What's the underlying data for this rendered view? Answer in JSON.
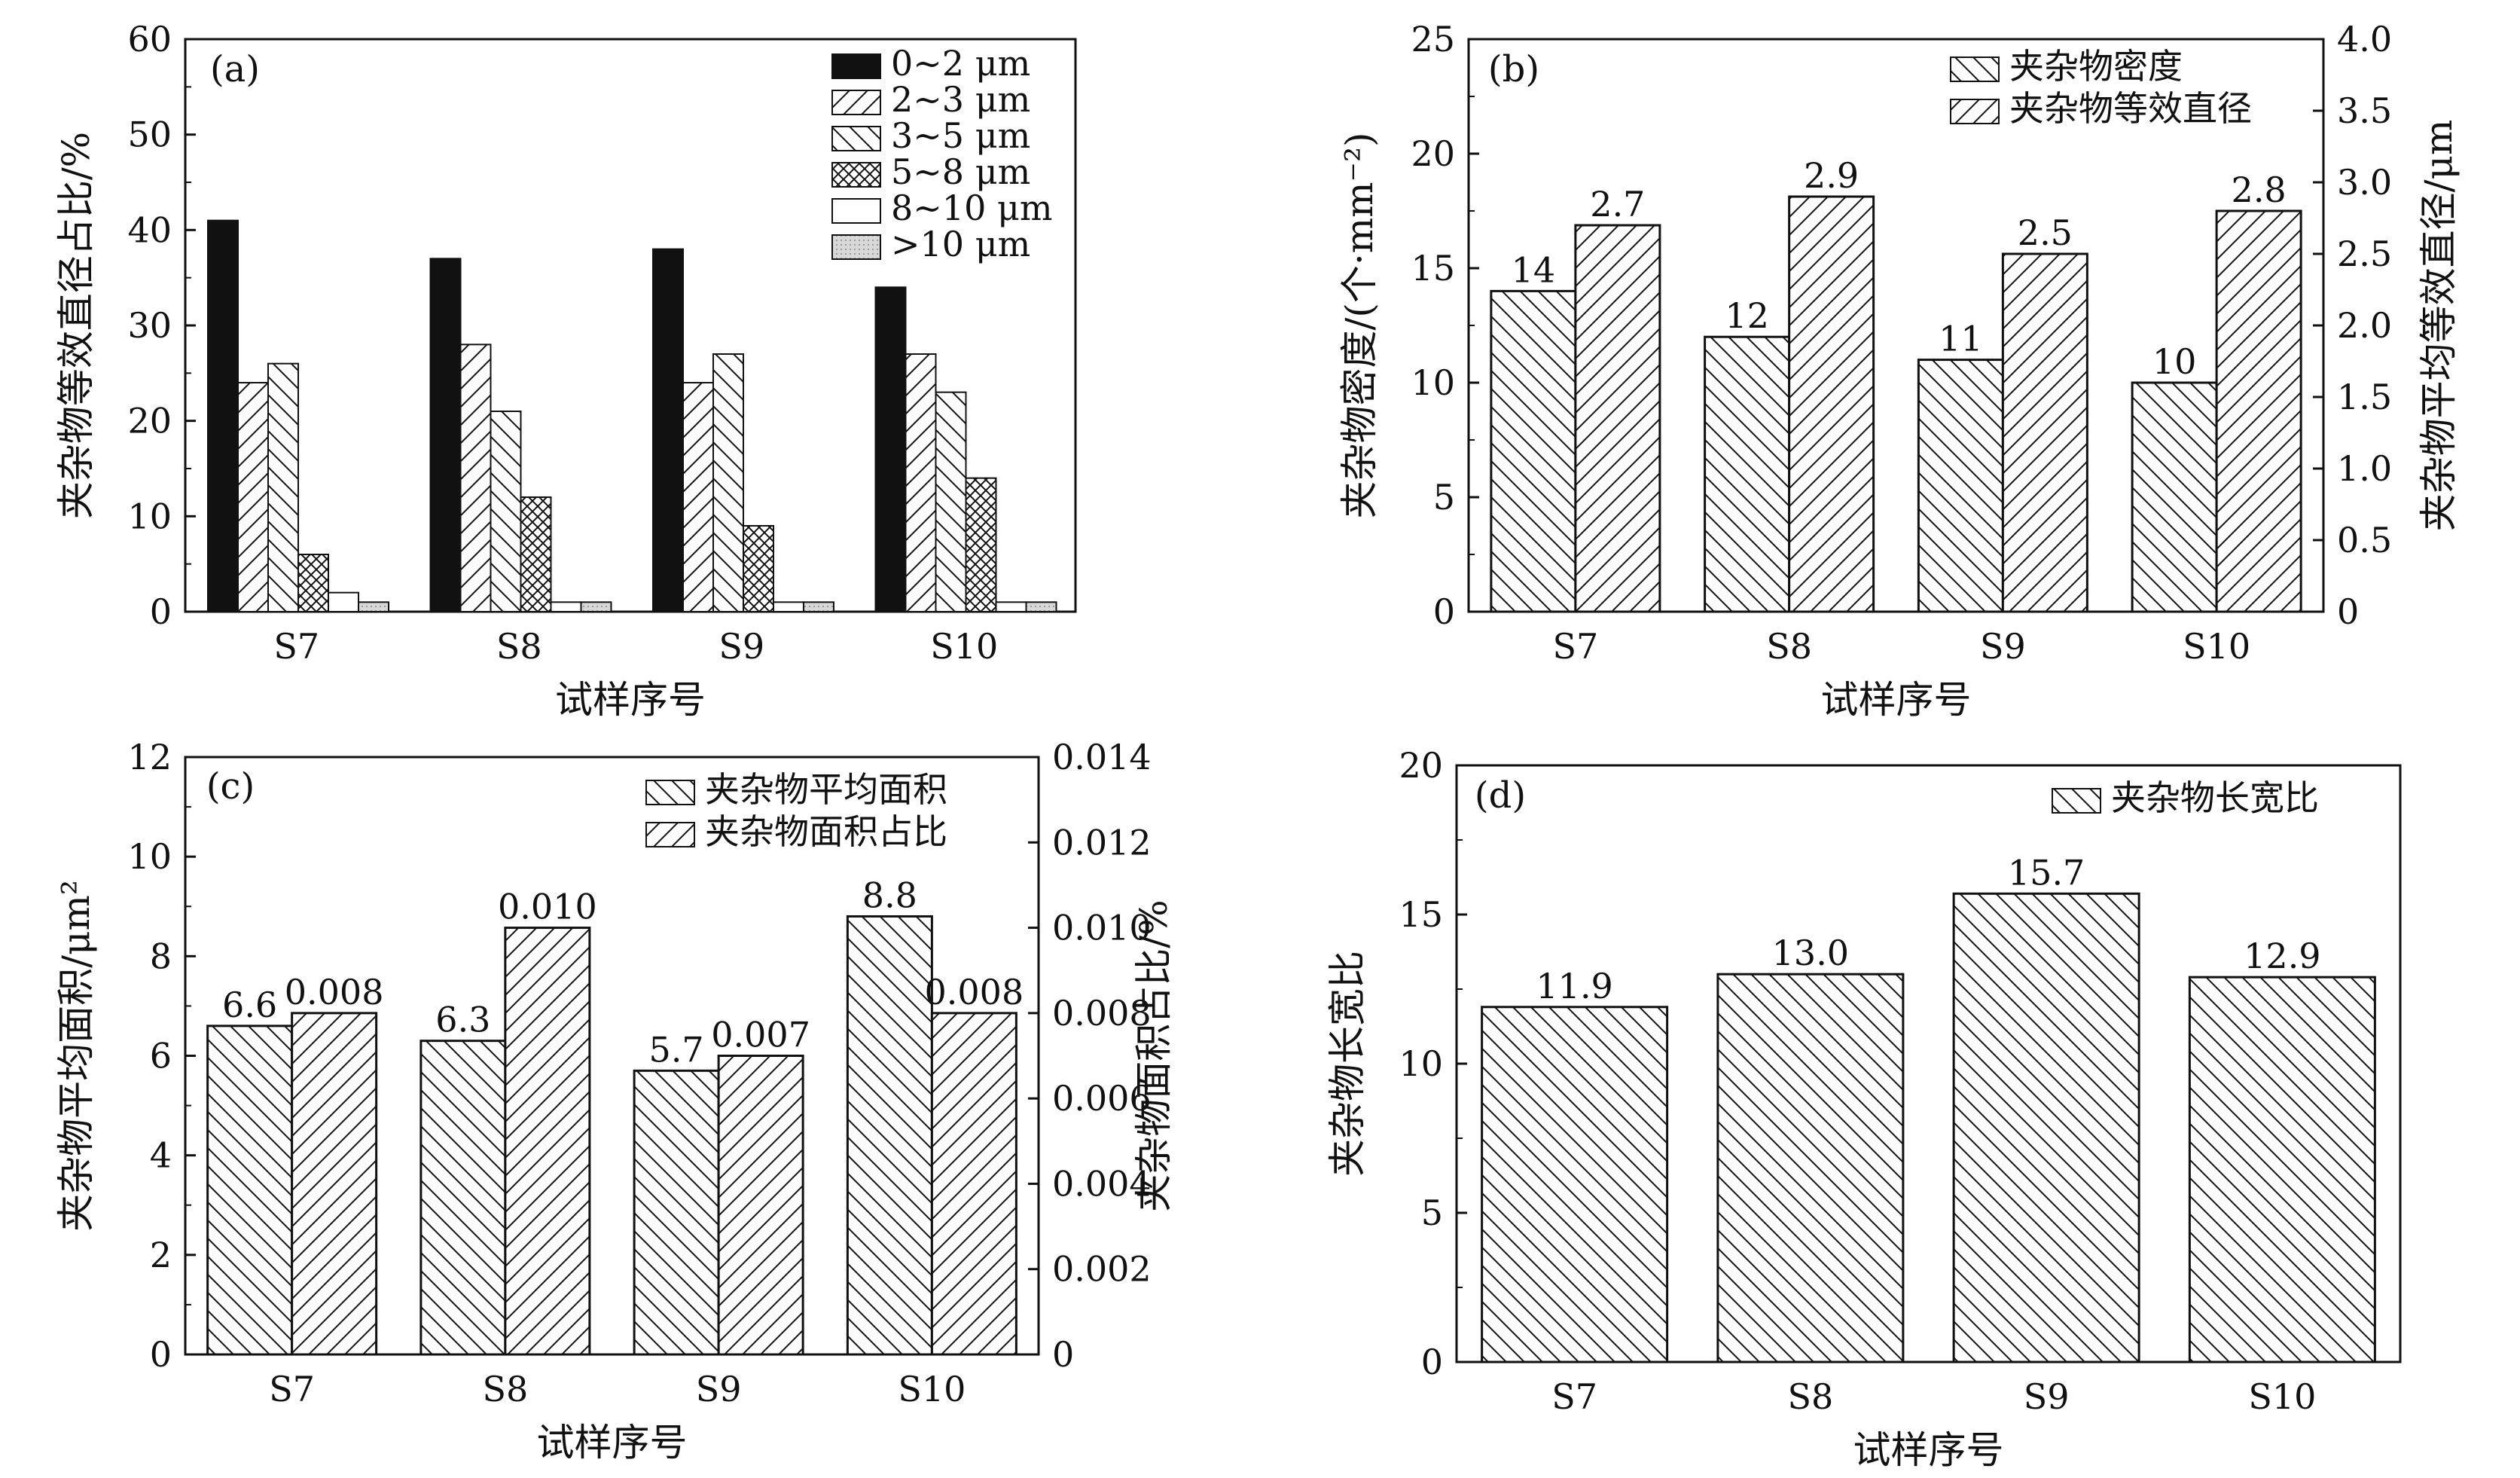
{
  "chart_data": [
    {
      "panel_label": "(a)",
      "type": "bar",
      "xlabel": "试样序号",
      "ylabel": "夹杂物等效直径占比/%",
      "categories": [
        "S7",
        "S8",
        "S9",
        "S10"
      ],
      "ylim": [
        0,
        60
      ],
      "yticks": [
        "0",
        "10",
        "20",
        "30",
        "40",
        "50",
        "60"
      ],
      "legend_position": "top-right",
      "series": [
        {
          "name": "0~2 μm",
          "values": [
            41,
            37,
            38,
            34
          ],
          "fill": "solid-black"
        },
        {
          "name": "2~3 μm",
          "values": [
            24,
            28,
            24,
            27
          ],
          "fill": "hatch-forward"
        },
        {
          "name": "3~5 μm",
          "values": [
            26,
            21,
            27,
            23
          ],
          "fill": "hatch-back"
        },
        {
          "name": "5~8 μm",
          "values": [
            6,
            12,
            9,
            14
          ],
          "fill": "crosshatch"
        },
        {
          "name": "8~10 μm",
          "values": [
            2,
            1,
            1,
            1
          ],
          "fill": "white"
        },
        {
          "name": ">10 μm",
          "values": [
            1,
            1,
            1,
            1
          ],
          "fill": "light-gray"
        }
      ]
    },
    {
      "panel_label": "(b)",
      "type": "bar",
      "xlabel": "试样序号",
      "ylabel": "夹杂物密度/(个·mm⁻²)",
      "ylabel_right": "夹杂物平均等效直径/μm",
      "categories": [
        "S7",
        "S8",
        "S9",
        "S10"
      ],
      "ylim": [
        0,
        25
      ],
      "ylim_right": [
        0,
        4.0
      ],
      "yticks": [
        "0",
        "5",
        "10",
        "15",
        "20",
        "25"
      ],
      "yticks_right": [
        "0",
        "0.5",
        "1.0",
        "1.5",
        "2.0",
        "2.5",
        "3.0",
        "3.5",
        "4.0"
      ],
      "legend_position": "top-right",
      "series": [
        {
          "name": "夹杂物密度",
          "axis": "left",
          "values": [
            14,
            12,
            11,
            10
          ],
          "labels": [
            "14",
            "12",
            "11",
            "10"
          ],
          "fill": "hatch-back"
        },
        {
          "name": "夹杂物等效直径",
          "axis": "right",
          "values": [
            2.7,
            2.9,
            2.5,
            2.8
          ],
          "labels": [
            "2.7",
            "2.9",
            "2.5",
            "2.8"
          ],
          "fill": "hatch-forward"
        }
      ]
    },
    {
      "panel_label": "(c)",
      "type": "bar",
      "xlabel": "试样序号",
      "ylabel": "夹杂物平均面积/μm²",
      "ylabel_right": "夹杂物面积占比/%",
      "categories": [
        "S7",
        "S8",
        "S9",
        "S10"
      ],
      "ylim": [
        0,
        12
      ],
      "ylim_right": [
        0,
        0.014
      ],
      "yticks": [
        "0",
        "2",
        "4",
        "6",
        "8",
        "10",
        "12"
      ],
      "yticks_right": [
        "0",
        "0.002",
        "0.004",
        "0.006",
        "0.008",
        "0.010",
        "0.012",
        "0.014"
      ],
      "legend_position": "top-right",
      "series": [
        {
          "name": "夹杂物平均面积",
          "axis": "left",
          "values": [
            6.6,
            6.3,
            5.7,
            8.8
          ],
          "labels": [
            "6.6",
            "6.3",
            "5.7",
            "8.8"
          ],
          "fill": "hatch-back"
        },
        {
          "name": "夹杂物面积占比",
          "axis": "right",
          "values": [
            0.008,
            0.01,
            0.007,
            0.008
          ],
          "labels": [
            "0.008",
            "0.010",
            "0.007",
            "0.008"
          ],
          "fill": "hatch-forward"
        }
      ]
    },
    {
      "panel_label": "(d)",
      "type": "bar",
      "xlabel": "试样序号",
      "ylabel": "夹杂物长宽比",
      "categories": [
        "S7",
        "S8",
        "S9",
        "S10"
      ],
      "ylim": [
        0,
        20
      ],
      "yticks": [
        "0",
        "5",
        "10",
        "15",
        "20"
      ],
      "legend_position": "top-right",
      "series": [
        {
          "name": "夹杂物长宽比",
          "axis": "left",
          "values": [
            11.9,
            13.0,
            15.7,
            12.9
          ],
          "labels": [
            "11.9",
            "13.0",
            "15.7",
            "12.9"
          ],
          "fill": "hatch-back"
        }
      ]
    }
  ]
}
